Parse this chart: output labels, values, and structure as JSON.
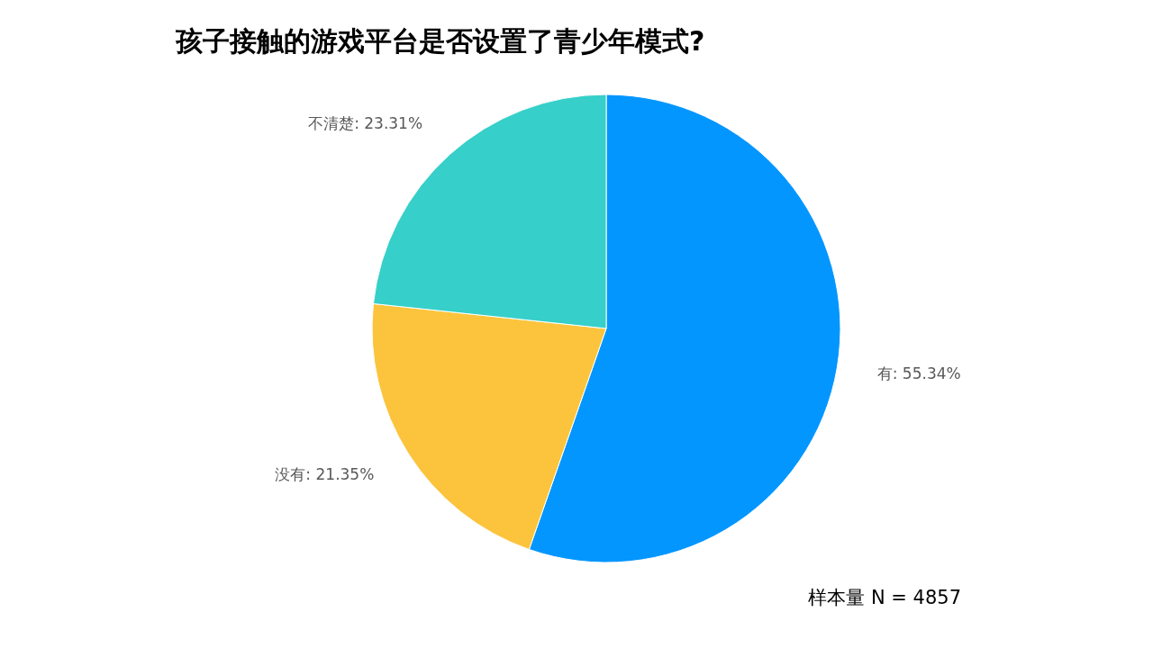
{
  "chart_data": {
    "type": "pie",
    "title": "孩子接触的游戏平台是否设置了青少年模式?",
    "categories": [
      "有",
      "没有",
      "不清楚"
    ],
    "values": [
      55.34,
      21.35,
      23.31
    ],
    "value_labels": [
      "55.34%",
      "21.35%",
      "23.31%"
    ],
    "colors": [
      "#0396ff",
      "#fcc43c",
      "#36cfc9"
    ],
    "annotations": [
      "样本量 N = 4857"
    ]
  }
}
